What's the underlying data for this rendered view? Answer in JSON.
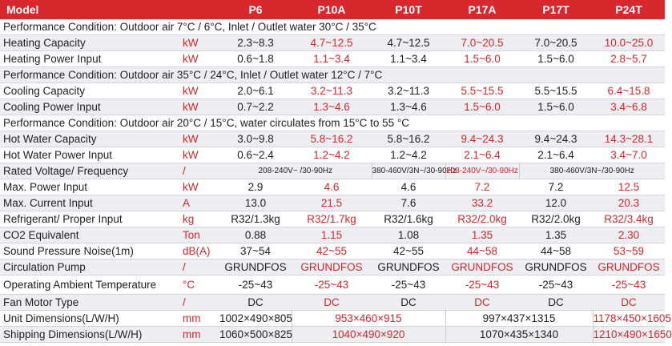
{
  "header": {
    "model": "Model",
    "models": [
      "P6",
      "P10A",
      "P10T",
      "P17A",
      "P17T",
      "P24T"
    ]
  },
  "rows": [
    {
      "type": "condition",
      "text": "Performance Condition: Outdoor air 7°C / 6°C, Inlet / Outlet water 30°C / 35°C"
    },
    {
      "type": "data",
      "name": "Heating Capacity",
      "unit": "kW",
      "values": [
        "2.3~8.3",
        "4.7~12.5",
        "4.7~12.5",
        "7.0~20.5",
        "7.0~20.5",
        "10.0~25.0"
      ]
    },
    {
      "type": "data",
      "name": "Heating Power Input",
      "unit": "kW",
      "values": [
        "0.6~1.8",
        "1.1~3.4",
        "1.1~3.4",
        "1.5~6.0",
        "1.5~6.0",
        "2.8~5.7"
      ]
    },
    {
      "type": "condition",
      "text": "Performance Condition: Outdoor air 35°C / 24°C, Inlet / Outlet water 12°C / 7°C"
    },
    {
      "type": "data",
      "name": "Cooling Capacity",
      "unit": "kW",
      "values": [
        "2.0~6.1",
        "3.2~11.3",
        "3.2~11.3",
        "5.5~15.5",
        "5.5~15.5",
        "6.4~15.8"
      ]
    },
    {
      "type": "data",
      "name": "Cooling Power Input",
      "unit": "kW",
      "values": [
        "0.7~2.2",
        "1.3~4.6",
        "1.3~4.6",
        "1.5~6.0",
        "1.5~6.0",
        "3.4~6.8"
      ]
    },
    {
      "type": "condition",
      "text": "Performance Condition: Outdoor air 20°C / 15°C, water circulates from 15°C to 55 °C"
    },
    {
      "type": "data",
      "name": "Hot Water Capacity",
      "unit": "kW",
      "values": [
        "3.0~9.8",
        "5.8~16.2",
        "5.8~16.2",
        "9.4~24.3",
        "9.4~24.3",
        "14.3~28.1"
      ]
    },
    {
      "type": "data",
      "name": "Hot Water Power Input",
      "unit": "kW",
      "values": [
        "0.6~2.4",
        "1.2~4.2",
        "1.2~4.2",
        "2.1~6.4",
        "2.1~6.4",
        "3.4~7.0"
      ]
    },
    {
      "type": "voltage",
      "name": "Rated Voltage/ Frequency",
      "unit": "/",
      "values": [
        "208-240V~ /30-90Hz",
        "380-460V/3N~/30-90Hz",
        "208-240V~/30-90Hz",
        "380-460V/3N~/30-90Hz"
      ]
    },
    {
      "type": "data",
      "name": "Max. Power Input",
      "unit": "kW",
      "values": [
        "2.9",
        "4.6",
        "4.6",
        "7.2",
        "7.2",
        "12.5"
      ]
    },
    {
      "type": "data",
      "name": "Max. Current Input",
      "unit": "A",
      "values": [
        "13.0",
        "21.5",
        "7.6",
        "33.2",
        "12.0",
        "20.3"
      ]
    },
    {
      "type": "data",
      "name": "Refrigerant/ Proper Input",
      "unit": "kg",
      "values": [
        "R32/1.3kg",
        "R32/1.7kg",
        "R32/1.6kg",
        "R32/2.0kg",
        "R32/2.0kg",
        "R32/3.4kg"
      ]
    },
    {
      "type": "data",
      "name": "CO2 Equivalent",
      "unit": "Ton",
      "values": [
        "0.88",
        "1.15",
        "1.08",
        "1.35",
        "1.35",
        "2.30"
      ]
    },
    {
      "type": "data",
      "name": "Sound Pressure Noise(1m)",
      "unit": "dB(A)",
      "values": [
        "37~54",
        "42~55",
        "42~55",
        "44~58",
        "44~58",
        "53~59"
      ]
    },
    {
      "type": "data",
      "name": "Circulation Pump",
      "unit": "/",
      "values": [
        "GRUNDFOS",
        "GRUNDFOS",
        "GRUNDFOS",
        "GRUNDFOS",
        "GRUNDFOS",
        "GRUNDFOS"
      ]
    },
    {
      "type": "data",
      "name": "Operating Ambient Temperature",
      "unit": "°C",
      "values": [
        "-25~43",
        "-25~43",
        "-25~43",
        "-25~43",
        "-25~43",
        "-25~43"
      ]
    },
    {
      "type": "data",
      "name": "Fan Motor Type",
      "unit": "/",
      "values": [
        "DC",
        "DC",
        "DC",
        "DC",
        "DC",
        "DC"
      ]
    },
    {
      "type": "dims",
      "name": "Unit Dimensions(L/W/H)",
      "unit": "mm",
      "values": [
        "1002×490×805",
        "953×460×915",
        "997×437×1315",
        "1178×450×1605"
      ]
    },
    {
      "type": "dims",
      "name": "Shipping Dimensions(L/W/H)",
      "unit": "mm",
      "values": [
        "1060×500×825",
        "1040×490×920",
        "1070×435×1340",
        "1210×490×1650"
      ]
    }
  ],
  "colors": {
    "accent": "#d9272e",
    "stripe": "#eceef1"
  }
}
